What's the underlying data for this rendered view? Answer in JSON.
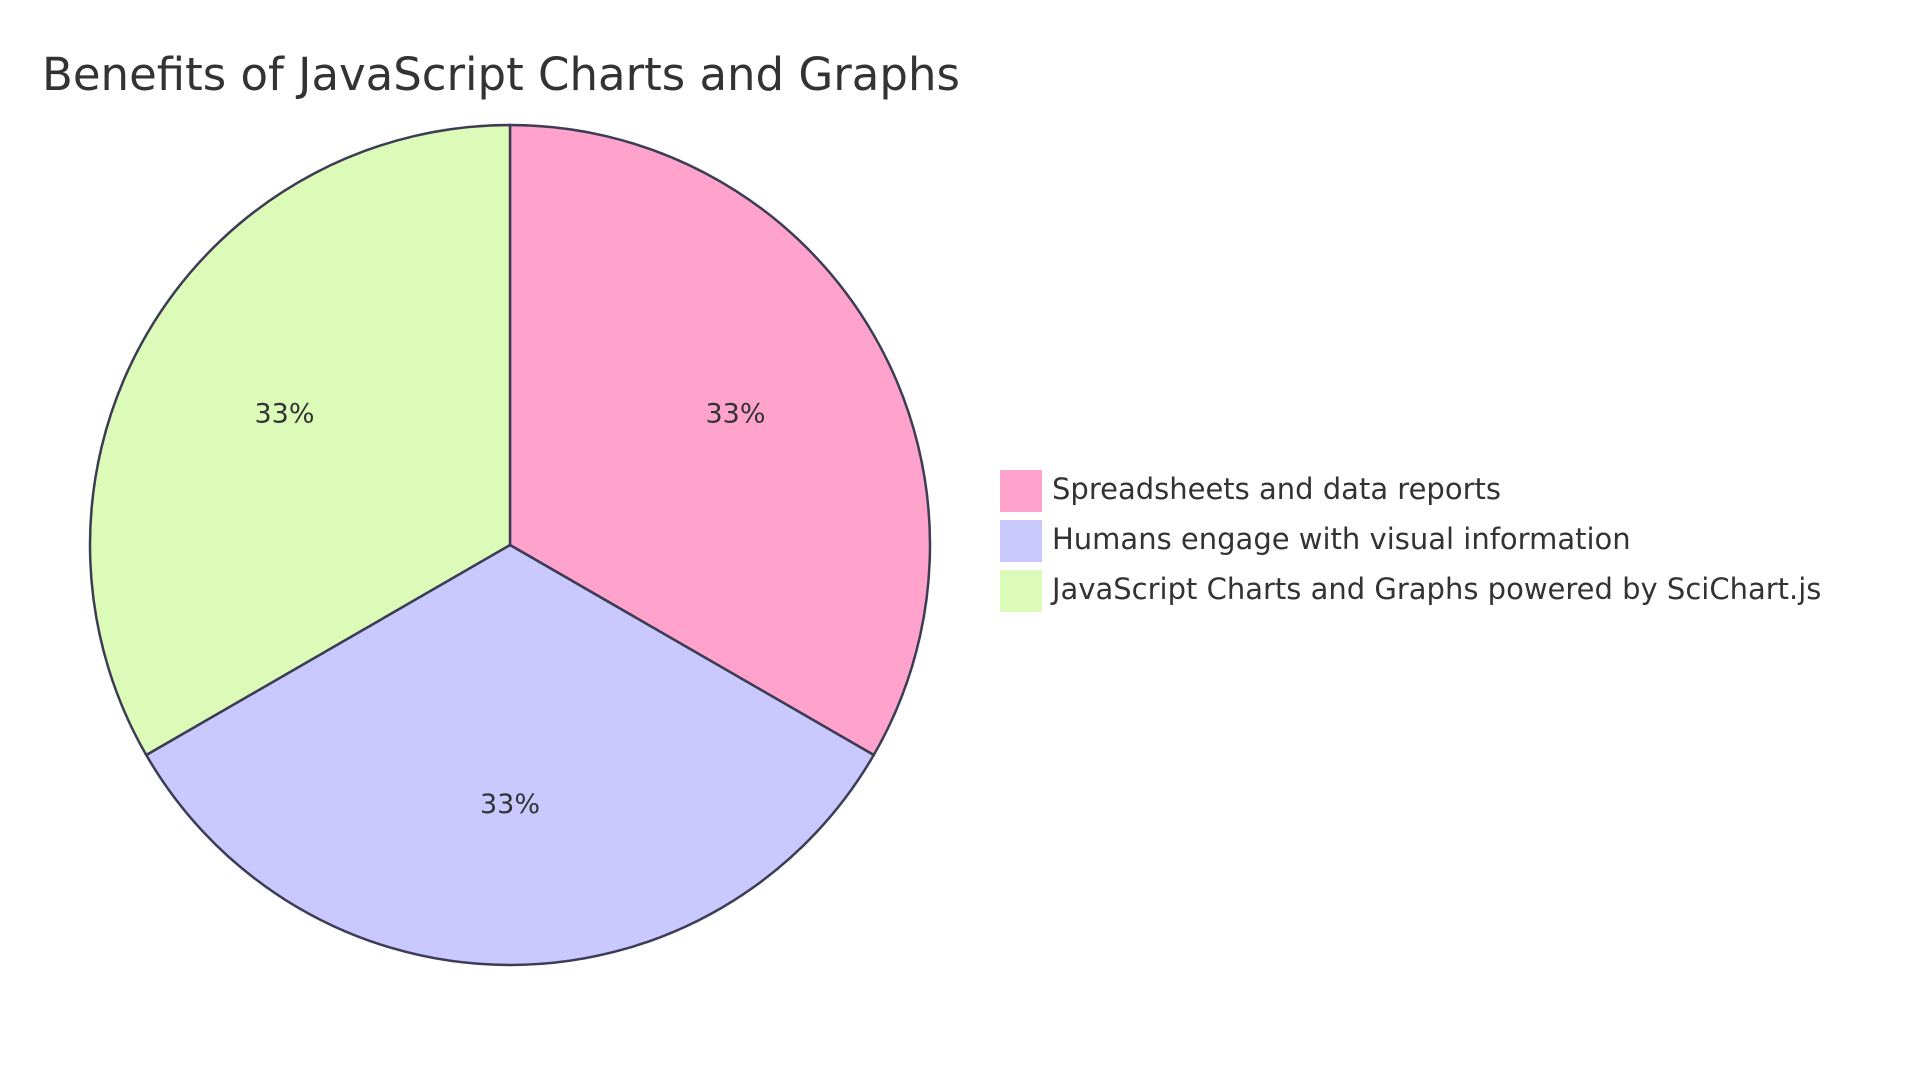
{
  "chart_data": {
    "type": "pie",
    "title": "Benefits of JavaScript Charts and Graphs",
    "slices": [
      {
        "label": "Spreadsheets and data reports",
        "value": 33,
        "display": "33%",
        "color": "#ffa3cd"
      },
      {
        "label": "Humans engage with visual information",
        "value": 33,
        "display": "33%",
        "color": "#c9c9ff"
      },
      {
        "label": "JavaScript Charts and Graphs powered by SciChart.js",
        "value": 33,
        "display": "33%",
        "color": "#dcfbb9"
      }
    ],
    "legend_position": "right"
  }
}
